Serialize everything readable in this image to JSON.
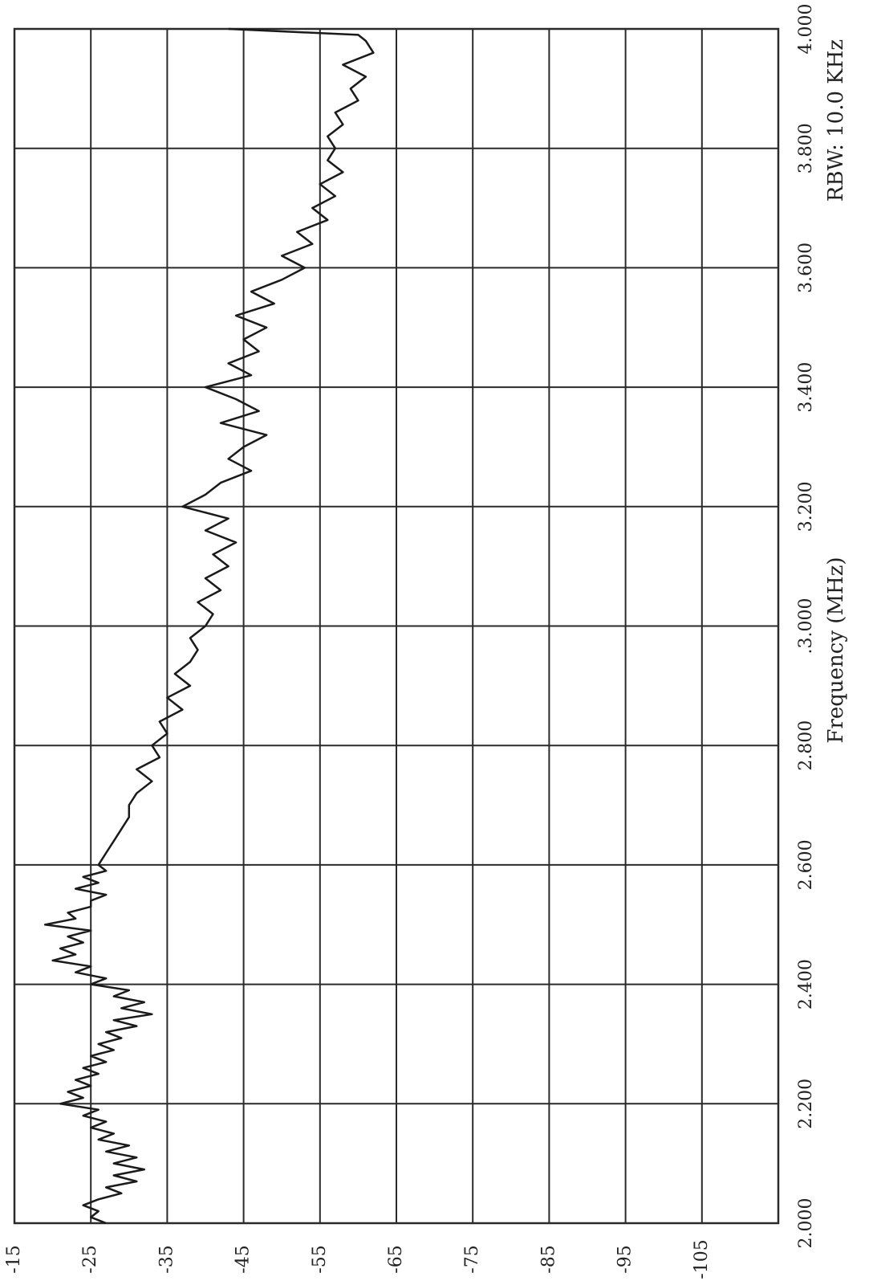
{
  "colors": {
    "trace": "#1a1a1a",
    "grid": "#2a2a2a",
    "background": "#ffffff"
  },
  "chart_data": {
    "type": "line",
    "orientation": "rotated-90-ccw",
    "title": "",
    "xlabel": "Frequency  (MHz)",
    "ylabel": "",
    "annotation": "RBW: 10.0 KHz",
    "xlim": [
      2.0,
      4.0
    ],
    "ylim": [
      -115,
      -15
    ],
    "x_ticks": [
      "2.000",
      "2.200",
      "2.400",
      "2.600",
      "2.800",
      ".3.000",
      "3.200",
      "3.400",
      "3.600",
      "3.800",
      "4.000"
    ],
    "y_ticks": [
      "-15",
      "-25",
      "-35",
      "-45",
      "-55",
      "-65",
      "-75",
      "-85",
      "-95",
      "-105"
    ],
    "grid": true,
    "series": [
      {
        "x": [
          2.0,
          2.01,
          2.02,
          2.03,
          2.04,
          2.05,
          2.06,
          2.07,
          2.08,
          2.09,
          2.1,
          2.11,
          2.12,
          2.13,
          2.14,
          2.15,
          2.16,
          2.17,
          2.18,
          2.19,
          2.2,
          2.21,
          2.22,
          2.23,
          2.24,
          2.25,
          2.26,
          2.27,
          2.28,
          2.29,
          2.3,
          2.31,
          2.32,
          2.33,
          2.34,
          2.35,
          2.36,
          2.37,
          2.38,
          2.39,
          2.4,
          2.41,
          2.42,
          2.43,
          2.44,
          2.45,
          2.46,
          2.47,
          2.48,
          2.49,
          2.5,
          2.51,
          2.52,
          2.53,
          2.54,
          2.55,
          2.56,
          2.57,
          2.58,
          2.59,
          2.6,
          2.62,
          2.64,
          2.66,
          2.68,
          2.7,
          2.72,
          2.74,
          2.76,
          2.78,
          2.8,
          2.82,
          2.84,
          2.86,
          2.88,
          2.9,
          2.92,
          2.94,
          2.96,
          2.98,
          3.0,
          3.02,
          3.04,
          3.06,
          3.08,
          3.1,
          3.12,
          3.14,
          3.16,
          3.18,
          3.2,
          3.22,
          3.24,
          3.26,
          3.28,
          3.3,
          3.32,
          3.34,
          3.36,
          3.38,
          3.4,
          3.42,
          3.44,
          3.46,
          3.48,
          3.5,
          3.52,
          3.54,
          3.56,
          3.58,
          3.6,
          3.62,
          3.64,
          3.66,
          3.68,
          3.7,
          3.72,
          3.74,
          3.76,
          3.78,
          3.8,
          3.82,
          3.84,
          3.86,
          3.88,
          3.9,
          3.92,
          3.94,
          3.96,
          3.98,
          3.99,
          4.0
        ],
        "y": [
          -27,
          -25,
          -26,
          -24,
          -26,
          -29,
          -27,
          -31,
          -28,
          -32,
          -28,
          -31,
          -27,
          -30,
          -26,
          -28,
          -25,
          -27,
          -24,
          -26,
          -21,
          -24,
          -22,
          -25,
          -23,
          -26,
          -24,
          -27,
          -25,
          -28,
          -26,
          -29,
          -27,
          -31,
          -28,
          -33,
          -29,
          -32,
          -28,
          -30,
          -25,
          -27,
          -23,
          -25,
          -20,
          -23,
          -21,
          -24,
          -22,
          -25,
          -19,
          -23,
          -22,
          -25,
          -25,
          -27,
          -23,
          -26,
          -24,
          -27,
          -26,
          -27,
          -28,
          -29,
          -30,
          -30,
          -31,
          -33,
          -31,
          -34,
          -33,
          -35,
          -34,
          -37,
          -35,
          -38,
          -36,
          -38,
          -39,
          -38,
          -40,
          -41,
          -39,
          -42,
          -40,
          -43,
          -41,
          -44,
          -40,
          -43,
          -37,
          -40,
          -42,
          -46,
          -43,
          -45,
          -48,
          -42,
          -47,
          -44,
          -40,
          -46,
          -43,
          -47,
          -45,
          -48,
          -44,
          -49,
          -46,
          -50,
          -53,
          -50,
          -54,
          -52,
          -56,
          -54,
          -57,
          -55,
          -58,
          -56,
          -57,
          -56,
          -58,
          -57,
          -60,
          -59,
          -61,
          -58,
          -62,
          -61,
          -60,
          -43
        ]
      }
    ]
  }
}
